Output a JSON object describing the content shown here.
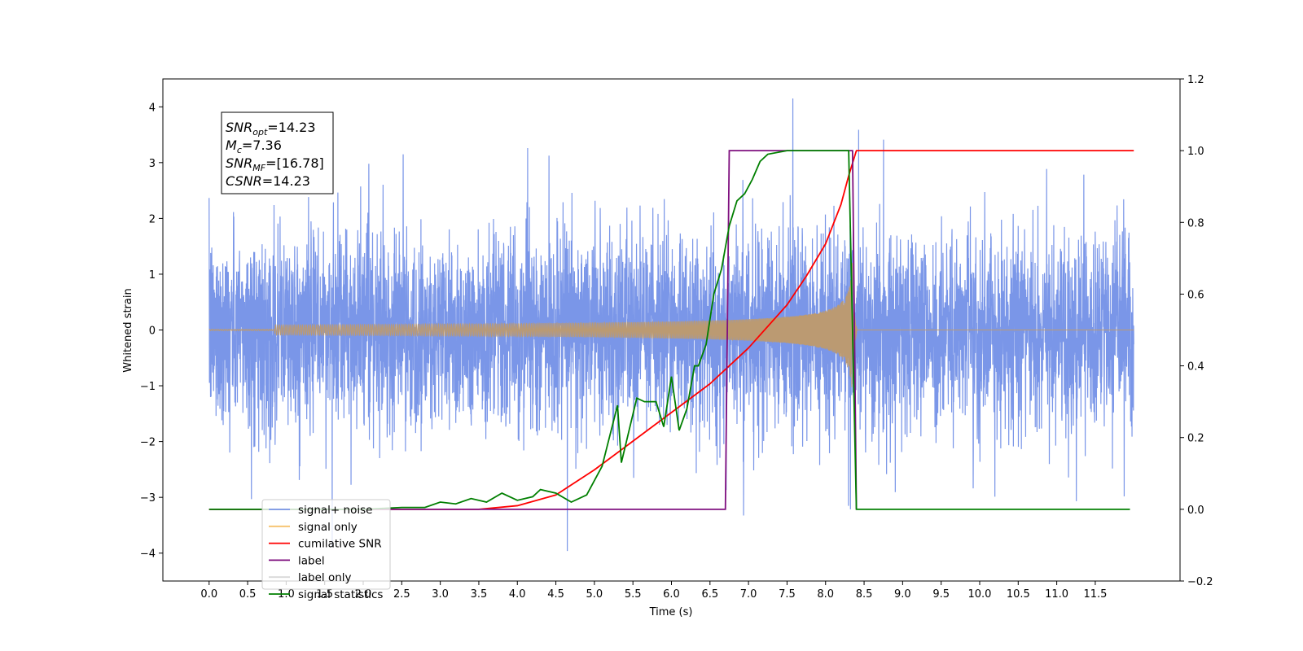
{
  "chart_data": {
    "type": "line",
    "xlabel": "Time (s)",
    "ylabel": "Whitened strain",
    "x_ticks": [
      "0.0",
      "0.5",
      "1.0",
      "1.5",
      "2.0",
      "2.5",
      "3.0",
      "3.5",
      "4.0",
      "4.5",
      "5.0",
      "5.5",
      "6.0",
      "6.5",
      "7.0",
      "7.5",
      "8.0",
      "8.5",
      "9.0",
      "9.5",
      "10.0",
      "10.5",
      "11.0",
      "11.5"
    ],
    "x_tick_values": [
      0.0,
      0.5,
      1.0,
      1.5,
      2.0,
      2.5,
      3.0,
      3.5,
      4.0,
      4.5,
      5.0,
      5.5,
      6.0,
      6.5,
      7.0,
      7.5,
      8.0,
      8.5,
      9.0,
      9.5,
      10.0,
      10.5,
      11.0,
      11.5
    ],
    "xlim": [
      -0.6,
      12.6
    ],
    "y_left_ticks": [
      "−4",
      "−3",
      "−2",
      "−1",
      "0",
      "1",
      "2",
      "3",
      "4"
    ],
    "y_left_tick_values": [
      -4,
      -3,
      -2,
      -1,
      0,
      1,
      2,
      3,
      4
    ],
    "ylim_left": [
      -4.5,
      4.5
    ],
    "y_right_ticks": [
      "−0.2",
      "0.0",
      "0.2",
      "0.4",
      "0.6",
      "0.8",
      "1.0",
      "1.2"
    ],
    "y_right_tick_values": [
      -0.2,
      0.0,
      0.2,
      0.4,
      0.6,
      0.8,
      1.0,
      1.2
    ],
    "ylim_right": [
      -0.2,
      1.2
    ],
    "grid": false,
    "legend_placement": "lower-left",
    "annotation": {
      "lines": [
        {
          "base": "SNR",
          "sub": "opt",
          "rest": "=14.23"
        },
        {
          "base": "M",
          "sub": "c",
          "rest": "=7.36"
        },
        {
          "base": "SNR",
          "sub": "MF",
          "rest": "=[16.78]"
        },
        {
          "base": "CSNR",
          "sub": "",
          "rest": "=14.23"
        }
      ]
    },
    "series": [
      {
        "name": "signal+ noise",
        "axis": "left",
        "color": "#7a96e8",
        "x_range": [
          0.0,
          12.0
        ],
        "noise_std": 0.85,
        "description_of_shape": "dense noisy time series spanning roughly -4 to 4"
      },
      {
        "name": "signal only",
        "axis": "left",
        "color": "#f5c16b",
        "x_range": [
          0.0,
          12.0
        ],
        "chirp_peak_time": 8.35,
        "peak_amplitude": 1.3
      },
      {
        "name": "cumilative SNR",
        "axis": "right",
        "color": "#ff0000",
        "x": [
          0.0,
          3.0,
          3.5,
          4.0,
          4.5,
          5.0,
          5.5,
          6.0,
          6.5,
          7.0,
          7.5,
          7.75,
          8.0,
          8.2,
          8.3,
          8.4,
          12.0
        ],
        "values": [
          0.0,
          0.0,
          0.0,
          0.01,
          0.04,
          0.11,
          0.19,
          0.27,
          0.35,
          0.45,
          0.57,
          0.65,
          0.74,
          0.85,
          0.93,
          1.0,
          1.0
        ]
      },
      {
        "name": "label",
        "axis": "right",
        "color": "#7f0f7f",
        "x": [
          0.0,
          6.7,
          6.75,
          8.35,
          8.4
        ],
        "values": [
          0.0,
          0.0,
          1.0,
          1.0,
          0.0
        ]
      },
      {
        "name": "label only",
        "axis": "right",
        "color": "#d9d9d9",
        "x": [],
        "values": []
      },
      {
        "name": "signal statistics",
        "axis": "right",
        "color": "#007f00",
        "x": [
          0.0,
          2.0,
          2.5,
          2.8,
          3.0,
          3.2,
          3.4,
          3.6,
          3.8,
          4.0,
          4.2,
          4.3,
          4.5,
          4.7,
          4.9,
          5.1,
          5.3,
          5.35,
          5.45,
          5.55,
          5.65,
          5.8,
          5.9,
          6.0,
          6.1,
          6.2,
          6.3,
          6.35,
          6.45,
          6.55,
          6.65,
          6.75,
          6.85,
          6.95,
          7.05,
          7.15,
          7.25,
          7.5,
          8.3,
          8.35,
          8.4,
          11.95
        ],
        "values": [
          0.0,
          0.0,
          0.005,
          0.005,
          0.02,
          0.015,
          0.03,
          0.02,
          0.045,
          0.025,
          0.035,
          0.055,
          0.045,
          0.02,
          0.04,
          0.12,
          0.29,
          0.13,
          0.22,
          0.31,
          0.3,
          0.3,
          0.23,
          0.37,
          0.22,
          0.28,
          0.4,
          0.4,
          0.46,
          0.6,
          0.67,
          0.79,
          0.86,
          0.88,
          0.92,
          0.97,
          0.99,
          1.0,
          1.0,
          0.5,
          0.0,
          0.0
        ]
      }
    ],
    "legend": [
      {
        "label": "signal+ noise",
        "color": "#7a96e8"
      },
      {
        "label": "signal only",
        "color": "#f5c16b"
      },
      {
        "label": "cumilative SNR",
        "color": "#ff0000"
      },
      {
        "label": "label",
        "color": "#7f0f7f"
      },
      {
        "label": "label only",
        "color": "#d9d9d9"
      },
      {
        "label": "signal statistics",
        "color": "#007f00"
      }
    ]
  }
}
